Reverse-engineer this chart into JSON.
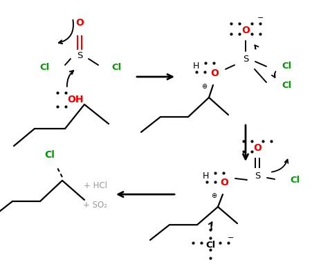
{
  "bg": "#ffffff",
  "bk": "#000000",
  "rd": "#ee0000",
  "gr": "#009900",
  "gy": "#999999",
  "figsize": [
    4.51,
    3.86
  ],
  "dpi": 100,
  "xlim": [
    0,
    4.51
  ],
  "ylim": [
    0,
    3.86
  ]
}
